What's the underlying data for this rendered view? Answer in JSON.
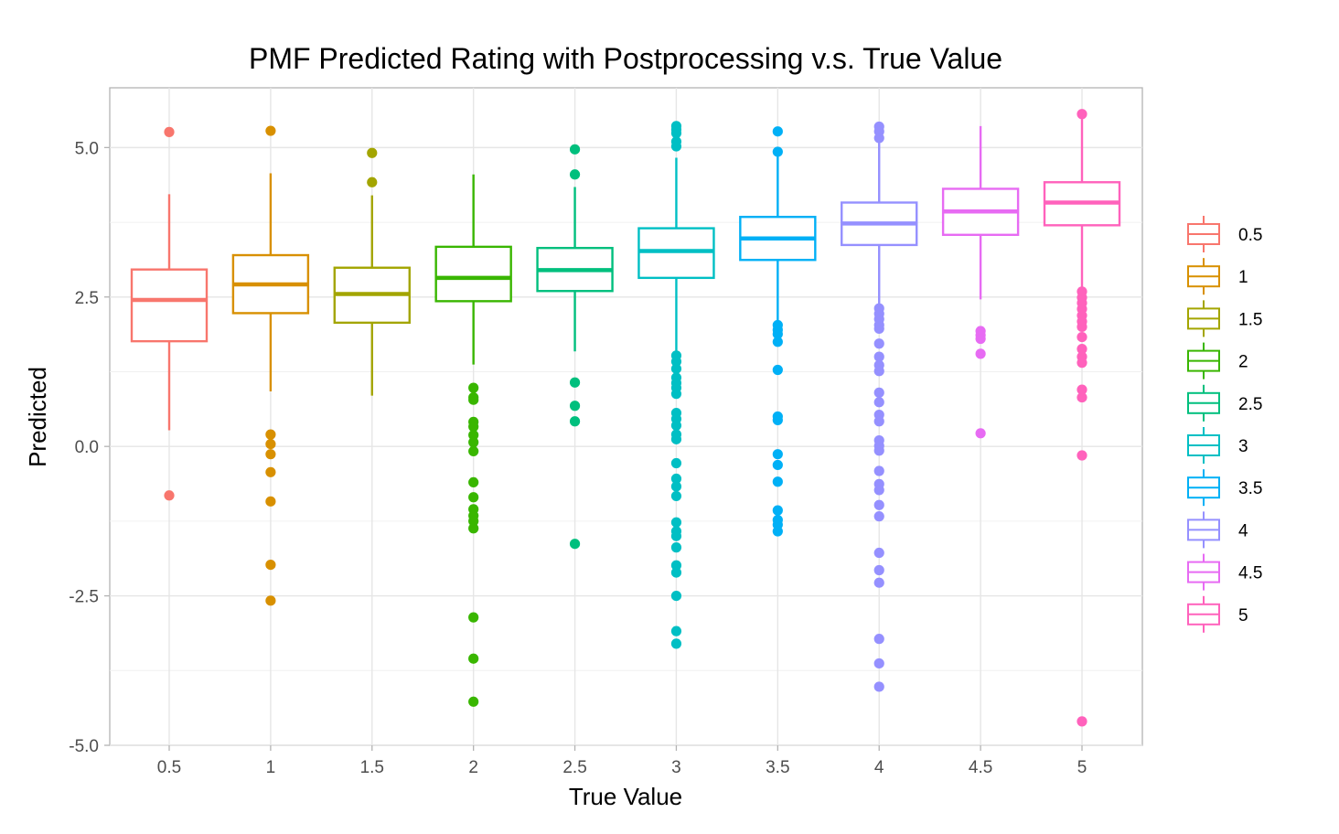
{
  "chart_data": {
    "type": "boxplot",
    "title": "PMF Predicted Rating with Postprocessing v.s. True Value",
    "xlabel": "True Value",
    "ylabel": "Predicted",
    "ylim": [
      -5.0,
      6.0
    ],
    "y_ticks": [
      -5.0,
      -2.5,
      0.0,
      2.5,
      5.0
    ],
    "y_tick_labels": [
      "-5.0",
      "-2.5",
      "0.0",
      "2.5",
      "5.0"
    ],
    "categories": [
      "0.5",
      "1",
      "1.5",
      "2",
      "2.5",
      "3",
      "3.5",
      "4",
      "4.5",
      "5"
    ],
    "grid": true,
    "legend_position": "right",
    "series": [
      {
        "name": "0.5",
        "color": "#F8766D",
        "q1": 1.76,
        "median": 2.45,
        "q3": 2.96,
        "whisker_low": 0.27,
        "whisker_high": 4.22,
        "outliers": [
          5.26,
          -0.82
        ]
      },
      {
        "name": "1",
        "color": "#D89000",
        "q1": 2.23,
        "median": 2.71,
        "q3": 3.2,
        "whisker_low": 0.92,
        "whisker_high": 4.57,
        "outliers": [
          5.28,
          0.2,
          0.04,
          -0.13,
          -0.43,
          -0.92,
          -1.98,
          -2.58
        ]
      },
      {
        "name": "1.5",
        "color": "#A3A500",
        "q1": 2.07,
        "median": 2.55,
        "q3": 2.99,
        "whisker_low": 0.85,
        "whisker_high": 4.2,
        "outliers": [
          4.91,
          4.42
        ]
      },
      {
        "name": "2",
        "color": "#39B600",
        "q1": 2.43,
        "median": 2.82,
        "q3": 3.34,
        "whisker_low": 1.37,
        "whisker_high": 4.55,
        "outliers": [
          0.98,
          0.82,
          0.78,
          0.41,
          0.33,
          0.19,
          0.07,
          -0.08,
          -0.6,
          -0.85,
          -1.05,
          -1.16,
          -1.25,
          -1.37,
          -2.86,
          -3.55,
          -4.27
        ]
      },
      {
        "name": "2.5",
        "color": "#00BF7D",
        "q1": 2.6,
        "median": 2.95,
        "q3": 3.32,
        "whisker_low": 1.59,
        "whisker_high": 4.34,
        "outliers": [
          4.97,
          4.55,
          1.07,
          0.68,
          0.42,
          -1.63
        ]
      },
      {
        "name": "3",
        "color": "#00BFC4",
        "q1": 2.82,
        "median": 3.27,
        "q3": 3.65,
        "whisker_low": 1.52,
        "whisker_high": 4.83,
        "outliers": [
          5.36,
          5.3,
          5.24,
          5.1,
          5.02,
          1.52,
          1.42,
          1.3,
          1.15,
          1.06,
          0.98,
          0.88,
          0.56,
          0.46,
          0.35,
          0.2,
          0.12,
          -0.28,
          -0.54,
          -0.67,
          -0.83,
          -1.27,
          -1.42,
          -1.5,
          -1.69,
          -1.99,
          -2.11,
          -2.5,
          -3.09,
          -3.3
        ]
      },
      {
        "name": "3.5",
        "color": "#00B0F6",
        "q1": 3.12,
        "median": 3.48,
        "q3": 3.84,
        "whisker_low": 2.06,
        "whisker_high": 4.93,
        "outliers": [
          5.27,
          4.93,
          2.03,
          1.95,
          1.88,
          1.75,
          1.28,
          0.5,
          0.44,
          -0.13,
          -0.31,
          -0.59,
          -1.07,
          -1.23,
          -1.31,
          -1.42
        ]
      },
      {
        "name": "4",
        "color": "#9590FF",
        "q1": 3.37,
        "median": 3.73,
        "q3": 4.08,
        "whisker_low": 2.36,
        "whisker_high": 5.08,
        "outliers": [
          5.35,
          5.27,
          5.16,
          2.31,
          2.22,
          2.13,
          2.03,
          1.97,
          1.72,
          1.5,
          1.36,
          1.26,
          0.9,
          0.74,
          0.53,
          0.42,
          0.1,
          0.01,
          -0.07,
          -0.41,
          -0.63,
          -0.73,
          -0.98,
          -1.17,
          -1.78,
          -2.07,
          -2.28,
          -3.22,
          -3.63,
          -4.02
        ]
      },
      {
        "name": "4.5",
        "color": "#E76BF3",
        "q1": 3.54,
        "median": 3.93,
        "q3": 4.31,
        "whisker_low": 2.46,
        "whisker_high": 5.36,
        "outliers": [
          1.93,
          1.86,
          1.8,
          1.55,
          0.22
        ]
      },
      {
        "name": "5",
        "color": "#FF62BC",
        "q1": 3.7,
        "median": 4.08,
        "q3": 4.42,
        "whisker_low": 2.65,
        "whisker_high": 5.5,
        "outliers": [
          5.56,
          2.59,
          2.49,
          2.4,
          2.3,
          2.19,
          2.09,
          2.0,
          1.83,
          1.63,
          1.5,
          1.4,
          0.95,
          0.82,
          -0.15,
          -4.6
        ]
      }
    ]
  }
}
